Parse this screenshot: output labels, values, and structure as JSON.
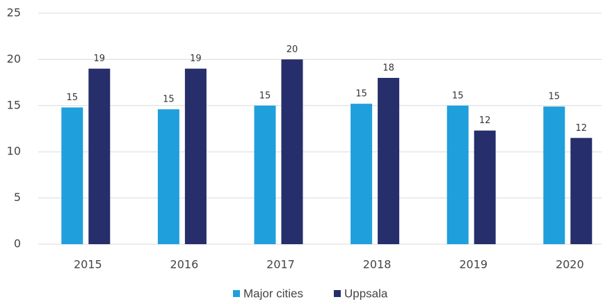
{
  "chart_data": {
    "type": "bar",
    "categories": [
      "2015",
      "2016",
      "2017",
      "2018",
      "2019",
      "2020"
    ],
    "series": [
      {
        "name": "Major cities",
        "color": "#1f9fdc",
        "values": [
          14.8,
          14.6,
          15.0,
          15.2,
          15.0,
          14.9
        ],
        "value_labels": [
          "15",
          "15",
          "15",
          "15",
          "15",
          "15"
        ]
      },
      {
        "name": "Uppsala",
        "color": "#262e6b",
        "values": [
          19.0,
          19.0,
          20.0,
          18.0,
          12.3,
          11.5
        ],
        "value_labels": [
          "19",
          "19",
          "20",
          "18",
          "12",
          "12"
        ]
      }
    ],
    "ylim": [
      0,
      25
    ],
    "yticks": [
      0,
      5,
      10,
      15,
      20,
      25
    ],
    "grid": true,
    "legend": "bottom"
  }
}
